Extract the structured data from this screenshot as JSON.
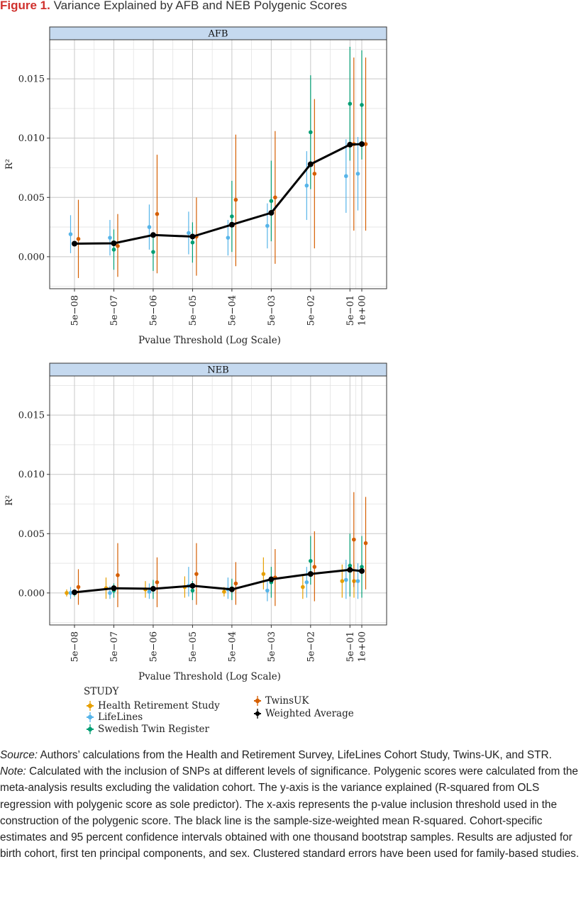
{
  "figure": {
    "label": "Figure 1.",
    "title": "Variance Explained by AFB and NEB Polygenic Scores"
  },
  "chart_data": [
    {
      "type": "scatter",
      "panel": "AFB",
      "xlabel": "Pvalue Threshold (Log Scale)",
      "ylabel": "R²",
      "x_scale": "log",
      "x_tick_labels": [
        "5e−08",
        "5e−07",
        "5e−06",
        "5e−05",
        "5e−04",
        "5e−03",
        "5e−02",
        "5e−01",
        "1e+00"
      ],
      "x_ticks": [
        5e-08,
        5e-07,
        5e-06,
        5e-05,
        0.0005,
        0.005,
        0.05,
        0.5,
        1
      ],
      "y_tick_labels": [
        "0.000",
        "0.005",
        "0.010",
        "0.015"
      ],
      "y_ticks": [
        0,
        0.005,
        0.01,
        0.015
      ],
      "ylim": [
        -0.0027,
        0.0183
      ],
      "grid": true,
      "series": [
        {
          "name": "LifeLines",
          "color": "#56b4e9",
          "offset": -1,
          "points": [
            {
              "x": 5e-08,
              "y": 0.0019,
              "lo": 0.0003,
              "hi": 0.0035
            },
            {
              "x": 5e-07,
              "y": 0.0016,
              "lo": 0.0001,
              "hi": 0.0031
            },
            {
              "x": 5e-06,
              "y": 0.0025,
              "lo": 0.0006,
              "hi": 0.0044
            },
            {
              "x": 5e-05,
              "y": 0.002,
              "lo": 0.0002,
              "hi": 0.0038
            },
            {
              "x": 0.0005,
              "y": 0.0016,
              "lo": 0.0001,
              "hi": 0.0031
            },
            {
              "x": 0.005,
              "y": 0.0026,
              "lo": 0.0007,
              "hi": 0.0045
            },
            {
              "x": 0.05,
              "y": 0.006,
              "lo": 0.0031,
              "hi": 0.0089
            },
            {
              "x": 0.5,
              "y": 0.0068,
              "lo": 0.0037,
              "hi": 0.0099
            },
            {
              "x": 1,
              "y": 0.007,
              "lo": 0.0039,
              "hi": 0.0101
            }
          ]
        },
        {
          "name": "Swedish Twin Register",
          "color": "#009e73",
          "offset": 0,
          "points": [
            {
              "x": 5e-07,
              "y": 0.0006,
              "lo": -0.0011,
              "hi": 0.0023
            },
            {
              "x": 5e-06,
              "y": 0.0004,
              "lo": -0.0012,
              "hi": 0.002
            },
            {
              "x": 5e-05,
              "y": 0.0012,
              "lo": -0.0005,
              "hi": 0.0029
            },
            {
              "x": 0.0005,
              "y": 0.0034,
              "lo": 0.0004,
              "hi": 0.0064
            },
            {
              "x": 0.005,
              "y": 0.0047,
              "lo": 0.0013,
              "hi": 0.0081
            },
            {
              "x": 0.05,
              "y": 0.0105,
              "lo": 0.0057,
              "hi": 0.0153
            },
            {
              "x": 0.5,
              "y": 0.0129,
              "lo": 0.0081,
              "hi": 0.0177
            },
            {
              "x": 1,
              "y": 0.0128,
              "lo": 0.0082,
              "hi": 0.0174
            }
          ]
        },
        {
          "name": "TwinsUK",
          "color": "#d55e00",
          "offset": 1,
          "points": [
            {
              "x": 5e-08,
              "y": 0.0015,
              "lo": -0.0018,
              "hi": 0.0048
            },
            {
              "x": 5e-07,
              "y": 0.0009,
              "lo": -0.0017,
              "hi": 0.0036
            },
            {
              "x": 5e-06,
              "y": 0.0036,
              "lo": -0.0014,
              "hi": 0.0086
            },
            {
              "x": 5e-05,
              "y": 0.0017,
              "lo": -0.0016,
              "hi": 0.005
            },
            {
              "x": 0.0005,
              "y": 0.0048,
              "lo": -0.0008,
              "hi": 0.0103
            },
            {
              "x": 0.005,
              "y": 0.005,
              "lo": -0.0006,
              "hi": 0.0106
            },
            {
              "x": 0.05,
              "y": 0.007,
              "lo": 0.0007,
              "hi": 0.0133
            },
            {
              "x": 0.5,
              "y": 0.0095,
              "lo": 0.0022,
              "hi": 0.0168
            },
            {
              "x": 1,
              "y": 0.0095,
              "lo": 0.0022,
              "hi": 0.0168
            }
          ]
        },
        {
          "name": "Weighted Average",
          "color": "#000000",
          "offset": 0,
          "line": true,
          "points": [
            {
              "x": 5e-08,
              "y": 0.0011
            },
            {
              "x": 5e-07,
              "y": 0.00113
            },
            {
              "x": 5e-06,
              "y": 0.00183
            },
            {
              "x": 5e-05,
              "y": 0.0017
            },
            {
              "x": 0.0005,
              "y": 0.0027
            },
            {
              "x": 0.005,
              "y": 0.0037
            },
            {
              "x": 0.05,
              "y": 0.0078
            },
            {
              "x": 0.5,
              "y": 0.00945
            },
            {
              "x": 1,
              "y": 0.0095
            }
          ]
        }
      ]
    },
    {
      "type": "scatter",
      "panel": "NEB",
      "xlabel": "Pvalue Threshold (Log Scale)",
      "ylabel": "R²",
      "x_scale": "log",
      "x_tick_labels": [
        "5e−08",
        "5e−07",
        "5e−06",
        "5e−05",
        "5e−04",
        "5e−03",
        "5e−02",
        "5e−01",
        "1e+00"
      ],
      "x_ticks": [
        5e-08,
        5e-07,
        5e-06,
        5e-05,
        0.0005,
        0.005,
        0.05,
        0.5,
        1
      ],
      "y_tick_labels": [
        "0.000",
        "0.005",
        "0.010",
        "0.015"
      ],
      "y_ticks": [
        0,
        0.005,
        0.01,
        0.015
      ],
      "ylim": [
        -0.0027,
        0.0183
      ],
      "grid": true,
      "series": [
        {
          "name": "Health Retirement Study",
          "color": "#e69f00",
          "offset": -2,
          "points": [
            {
              "x": 5e-08,
              "y": 0.0,
              "lo": -0.0003,
              "hi": 0.0003
            },
            {
              "x": 5e-07,
              "y": 0.0004,
              "lo": -0.0005,
              "hi": 0.0013
            },
            {
              "x": 5e-06,
              "y": 0.0003,
              "lo": -0.0004,
              "hi": 0.001
            },
            {
              "x": 5e-05,
              "y": 0.0005,
              "lo": -0.0004,
              "hi": 0.0014
            },
            {
              "x": 0.0005,
              "y": 0.0001,
              "lo": -0.0003,
              "hi": 0.0005
            },
            {
              "x": 0.005,
              "y": 0.0016,
              "lo": 0.0003,
              "hi": 0.003
            },
            {
              "x": 0.05,
              "y": 0.0005,
              "lo": -0.0005,
              "hi": 0.0015
            },
            {
              "x": 0.5,
              "y": 0.001,
              "lo": -0.0004,
              "hi": 0.0024
            },
            {
              "x": 1,
              "y": 0.001,
              "lo": -0.0004,
              "hi": 0.0024
            }
          ]
        },
        {
          "name": "LifeLines",
          "color": "#56b4e9",
          "offset": -1,
          "points": [
            {
              "x": 5e-08,
              "y": 0.0,
              "lo": -0.0005,
              "hi": 0.0005
            },
            {
              "x": 5e-07,
              "y": 0.0,
              "lo": -0.0005,
              "hi": 0.0006
            },
            {
              "x": 5e-06,
              "y": 0.0001,
              "lo": -0.0005,
              "hi": 0.0008
            },
            {
              "x": 5e-05,
              "y": 0.0006,
              "lo": -0.0003,
              "hi": 0.0022
            },
            {
              "x": 0.0005,
              "y": 0.0003,
              "lo": -0.0005,
              "hi": 0.0013
            },
            {
              "x": 0.005,
              "y": 0.0002,
              "lo": -0.0007,
              "hi": 0.0011
            },
            {
              "x": 0.05,
              "y": 0.0009,
              "lo": -0.0004,
              "hi": 0.0022
            },
            {
              "x": 0.5,
              "y": 0.0011,
              "lo": -0.0005,
              "hi": 0.0028
            },
            {
              "x": 1,
              "y": 0.001,
              "lo": -0.0005,
              "hi": 0.0025
            }
          ]
        },
        {
          "name": "Swedish Twin Register",
          "color": "#009e73",
          "offset": 0,
          "points": [
            {
              "x": 5e-08,
              "y": 0.0,
              "lo": -0.0003,
              "hi": 0.0003
            },
            {
              "x": 5e-07,
              "y": 0.0002,
              "lo": -0.0004,
              "hi": 0.0008
            },
            {
              "x": 5e-06,
              "y": 0.0003,
              "lo": -0.0005,
              "hi": 0.0011
            },
            {
              "x": 5e-05,
              "y": 0.0002,
              "lo": -0.0006,
              "hi": 0.001
            },
            {
              "x": 0.0005,
              "y": 0.0003,
              "lo": -0.0006,
              "hi": 0.0012
            },
            {
              "x": 0.005,
              "y": 0.0009,
              "lo": -0.0004,
              "hi": 0.0022
            },
            {
              "x": 0.05,
              "y": 0.0027,
              "lo": 0.0007,
              "hi": 0.0048
            },
            {
              "x": 0.5,
              "y": 0.0023,
              "lo": -0.0003,
              "hi": 0.005
            },
            {
              "x": 1,
              "y": 0.0022,
              "lo": -0.0004,
              "hi": 0.0048
            }
          ]
        },
        {
          "name": "TwinsUK",
          "color": "#d55e00",
          "offset": 1,
          "points": [
            {
              "x": 5e-08,
              "y": 0.0005,
              "lo": -0.001,
              "hi": 0.002
            },
            {
              "x": 5e-07,
              "y": 0.0015,
              "lo": -0.0012,
              "hi": 0.0042
            },
            {
              "x": 5e-06,
              "y": 0.0009,
              "lo": -0.0012,
              "hi": 0.003
            },
            {
              "x": 5e-05,
              "y": 0.0016,
              "lo": -0.001,
              "hi": 0.0042
            },
            {
              "x": 0.0005,
              "y": 0.0008,
              "lo": -0.001,
              "hi": 0.0026
            },
            {
              "x": 0.005,
              "y": 0.0013,
              "lo": -0.0011,
              "hi": 0.0037
            },
            {
              "x": 0.05,
              "y": 0.0022,
              "lo": -0.0007,
              "hi": 0.0052
            },
            {
              "x": 0.5,
              "y": 0.0045,
              "lo": 0.0005,
              "hi": 0.0085
            },
            {
              "x": 1,
              "y": 0.0042,
              "lo": 0.0003,
              "hi": 0.0081
            }
          ]
        },
        {
          "name": "Weighted Average",
          "color": "#000000",
          "offset": 0,
          "line": true,
          "points": [
            {
              "x": 5e-08,
              "y": 5e-05
            },
            {
              "x": 5e-07,
              "y": 0.0004
            },
            {
              "x": 5e-06,
              "y": 0.00035
            },
            {
              "x": 5e-05,
              "y": 0.0006
            },
            {
              "x": 0.0005,
              "y": 0.0003
            },
            {
              "x": 0.005,
              "y": 0.00115
            },
            {
              "x": 0.05,
              "y": 0.0016
            },
            {
              "x": 0.5,
              "y": 0.00195
            },
            {
              "x": 1,
              "y": 0.00185
            }
          ]
        }
      ]
    }
  ],
  "legend": {
    "title": "STUDY",
    "items": [
      {
        "label": "Health Retirement Study",
        "color": "#e69f00"
      },
      {
        "label": "LifeLines",
        "color": "#56b4e9"
      },
      {
        "label": "Swedish Twin Register",
        "color": "#009e73"
      },
      {
        "label": "TwinsUK",
        "color": "#d55e00"
      },
      {
        "label": "Weighted Average",
        "color": "#000000"
      }
    ]
  },
  "notes": {
    "source_label": "Source:",
    "source_text": " Authors’ calculations from the Health and Retirement Survey, LifeLines Cohort Study, Twins-UK, and STR.",
    "note_label": "Note:",
    "note_text": " Calculated with the inclusion of SNPs at different levels of significance. Polygenic scores were calculated from the meta-analysis results excluding the validation cohort. The y-axis is the variance explained (R-squared from OLS regression with polygenic score as sole predictor). The x-axis represents the p-value inclusion threshold used in the construction of the polygenic score. The black line is the sample-size-weighted mean R-squared. Cohort-specific estimates and 95 percent confidence intervals obtained with one thousand bootstrap samples. Results are adjusted for birth cohort, first ten principal components, and sex. Clustered standard errors have been used for family-based studies."
  }
}
